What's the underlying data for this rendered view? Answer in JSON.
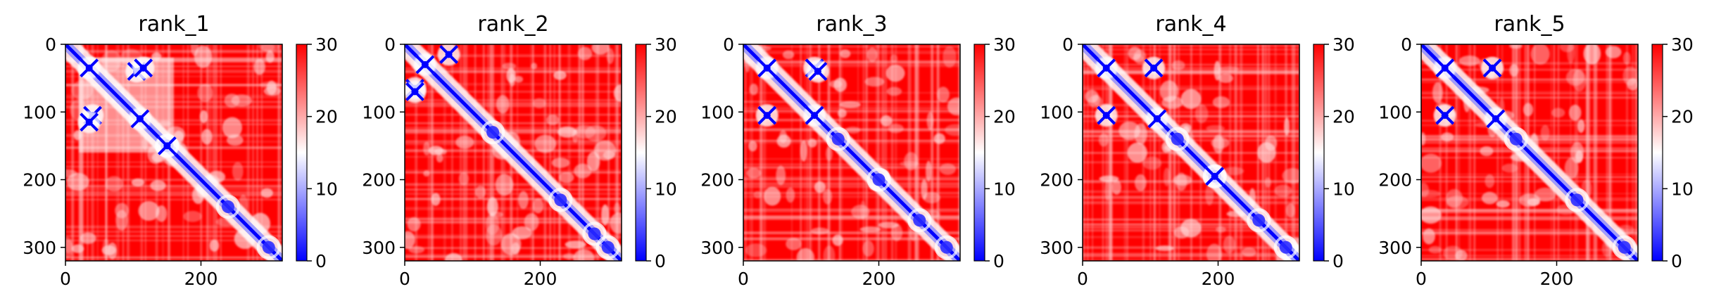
{
  "chart_data": {
    "type": "heatmap",
    "colormap": {
      "name": "bwr",
      "range": [
        0,
        30
      ],
      "low_color": "#0000ff",
      "mid_color": "#ffffff",
      "high_color": "#ff0000"
    },
    "panels": [
      {
        "title": "rank_1",
        "xlim": [
          0,
          320
        ],
        "ylim": [
          320,
          0
        ],
        "xticks": [
          "0",
          "200"
        ],
        "yticks": [
          "0",
          "100",
          "200",
          "300"
        ],
        "colorbar_ticks": [
          "0",
          "10",
          "20",
          "30"
        ],
        "contact_blocks": [
          [
            20,
            160,
            20,
            160
          ]
        ],
        "hotspots": [
          [
            35,
            35
          ],
          [
            110,
            110
          ],
          [
            40,
            105
          ],
          [
            105,
            40
          ],
          [
            115,
            35
          ],
          [
            35,
            115
          ],
          [
            150,
            150
          ]
        ],
        "diagonal_blobs": [
          [
            150,
            150
          ],
          [
            240,
            240
          ],
          [
            300,
            300
          ]
        ]
      },
      {
        "title": "rank_2",
        "xlim": [
          0,
          320
        ],
        "ylim": [
          320,
          0
        ],
        "xticks": [
          "0",
          "200"
        ],
        "yticks": [
          "0",
          "100",
          "200",
          "300"
        ],
        "colorbar_ticks": [
          "0",
          "10",
          "20",
          "30"
        ],
        "contact_blocks": [],
        "hotspots": [
          [
            30,
            30
          ],
          [
            65,
            15
          ],
          [
            15,
            65
          ],
          [
            15,
            70
          ]
        ],
        "diagonal_blobs": [
          [
            130,
            130
          ],
          [
            230,
            230
          ],
          [
            280,
            280
          ],
          [
            300,
            300
          ]
        ]
      },
      {
        "title": "rank_3",
        "xlim": [
          0,
          320
        ],
        "ylim": [
          320,
          0
        ],
        "xticks": [
          "0",
          "200"
        ],
        "yticks": [
          "0",
          "100",
          "200",
          "300"
        ],
        "colorbar_ticks": [
          "0",
          "10",
          "20",
          "30"
        ],
        "contact_blocks": [],
        "hotspots": [
          [
            35,
            35
          ],
          [
            105,
            105
          ],
          [
            105,
            35
          ],
          [
            35,
            105
          ],
          [
            110,
            40
          ]
        ],
        "diagonal_blobs": [
          [
            140,
            140
          ],
          [
            200,
            200
          ],
          [
            260,
            260
          ],
          [
            300,
            300
          ]
        ]
      },
      {
        "title": "rank_4",
        "xlim": [
          0,
          320
        ],
        "ylim": [
          320,
          0
        ],
        "xticks": [
          "0",
          "200"
        ],
        "yticks": [
          "0",
          "100",
          "200",
          "300"
        ],
        "colorbar_ticks": [
          "0",
          "10",
          "20",
          "30"
        ],
        "contact_blocks": [],
        "hotspots": [
          [
            35,
            35
          ],
          [
            110,
            110
          ],
          [
            105,
            35
          ],
          [
            35,
            105
          ],
          [
            195,
            195
          ]
        ],
        "diagonal_blobs": [
          [
            140,
            140
          ],
          [
            195,
            195
          ],
          [
            260,
            260
          ],
          [
            300,
            300
          ]
        ]
      },
      {
        "title": "rank_5",
        "xlim": [
          0,
          320
        ],
        "ylim": [
          320,
          0
        ],
        "xticks": [
          "0",
          "200"
        ],
        "yticks": [
          "0",
          "100",
          "200",
          "300"
        ],
        "colorbar_ticks": [
          "0",
          "10",
          "20",
          "30"
        ],
        "contact_blocks": [],
        "hotspots": [
          [
            35,
            35
          ],
          [
            110,
            110
          ],
          [
            105,
            35
          ],
          [
            35,
            105
          ]
        ],
        "diagonal_blobs": [
          [
            140,
            140
          ],
          [
            230,
            230
          ],
          [
            300,
            300
          ]
        ]
      }
    ]
  }
}
